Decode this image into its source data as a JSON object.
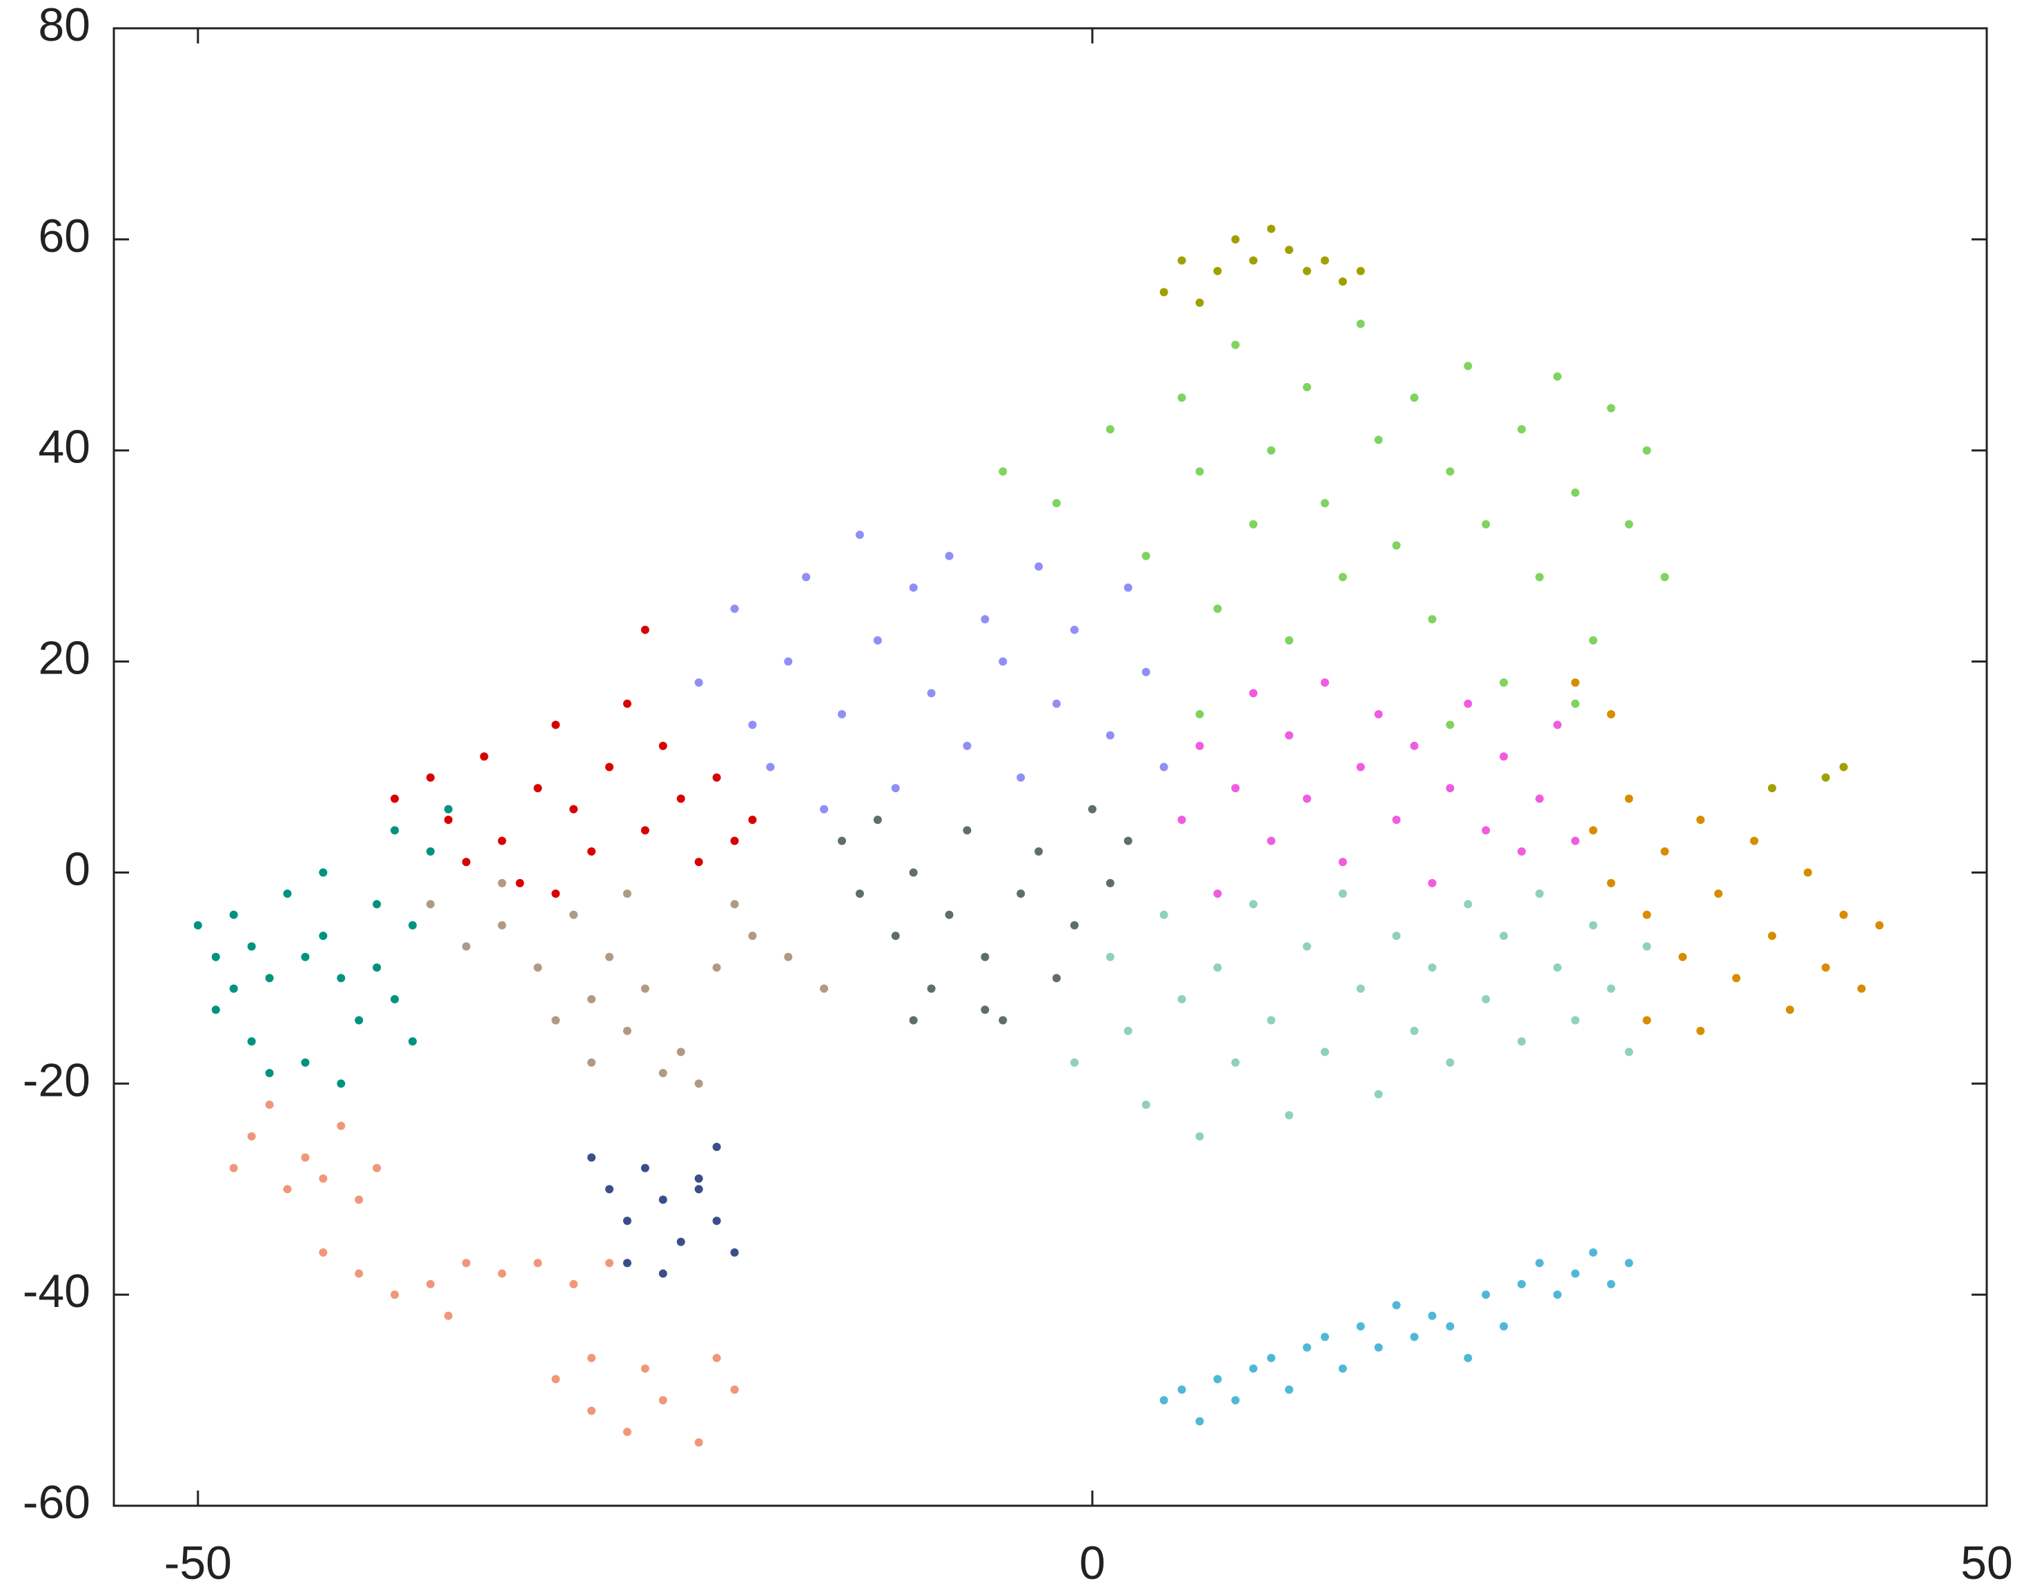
{
  "chart_data": {
    "type": "scatter",
    "xlim": [
      -54.7,
      50
    ],
    "ylim": [
      -60,
      80
    ],
    "xticks": [
      -50,
      0,
      50
    ],
    "yticks": [
      -60,
      -40,
      -20,
      0,
      20,
      40,
      60,
      80
    ],
    "series": [
      {
        "color": "#009380",
        "x": [
          -50,
          -49,
          -48,
          -47,
          -46,
          -49,
          -47,
          -45,
          -44,
          -43,
          -42,
          -41,
          -40,
          -39,
          -38,
          -40,
          -43,
          -44,
          -46,
          -42,
          -37,
          -36,
          -39,
          -38,
          -48
        ],
        "values": [
          -5,
          -8,
          -4,
          -7,
          -10,
          -13,
          -16,
          -2,
          -8,
          -6,
          -10,
          -14,
          -9,
          -12,
          -5,
          -3,
          0,
          -18,
          -19,
          -20,
          2,
          6,
          4,
          -16,
          -11
        ]
      },
      {
        "color": "#f0977a",
        "x": [
          -48,
          -47,
          -46,
          -45,
          -44,
          -43,
          -42,
          -41,
          -40,
          -43,
          -41,
          -39,
          -37,
          -36,
          -35,
          -33,
          -31,
          -29,
          -27,
          -30,
          -28,
          -26,
          -24,
          -22,
          -20,
          -21,
          -25,
          -28
        ],
        "values": [
          -28,
          -25,
          -22,
          -30,
          -27,
          -29,
          -24,
          -31,
          -28,
          -36,
          -38,
          -40,
          -39,
          -42,
          -37,
          -38,
          -37,
          -39,
          -37,
          -48,
          -51,
          -53,
          -50,
          -54,
          -49,
          -46,
          -47,
          -46
        ]
      },
      {
        "color": "#3a4f8a",
        "x": [
          -28,
          -27,
          -26,
          -25,
          -24,
          -23,
          -22,
          -21,
          -20,
          -26,
          -24,
          -21,
          -22
        ],
        "values": [
          -27,
          -30,
          -33,
          -28,
          -31,
          -35,
          -29,
          -33,
          -36,
          -37,
          -38,
          -26,
          -30
        ]
      },
      {
        "color": "#b09a84",
        "x": [
          -37,
          -35,
          -33,
          -31,
          -29,
          -28,
          -27,
          -26,
          -25,
          -24,
          -23,
          -22,
          -21,
          -20,
          -19,
          -17,
          -15,
          -30,
          -28,
          -33,
          -26
        ],
        "values": [
          -3,
          -7,
          -5,
          -9,
          -4,
          -12,
          -8,
          -15,
          -11,
          -19,
          -17,
          -20,
          -9,
          -3,
          -6,
          -8,
          -11,
          -14,
          -18,
          -1,
          -2
        ]
      },
      {
        "color": "#d90000",
        "x": [
          -39,
          -37,
          -36,
          -35,
          -34,
          -33,
          -32,
          -31,
          -30,
          -29,
          -28,
          -27,
          -26,
          -25,
          -24,
          -23,
          -22,
          -21,
          -20,
          -19,
          -25,
          -30
        ],
        "values": [
          7,
          9,
          5,
          1,
          11,
          3,
          -1,
          8,
          14,
          6,
          2,
          10,
          16,
          4,
          12,
          7,
          1,
          9,
          3,
          5,
          23,
          -2
        ]
      },
      {
        "color": "#8f8ff5",
        "x": [
          -22,
          -20,
          -18,
          -17,
          -16,
          -14,
          -13,
          -12,
          -11,
          -10,
          -9,
          -8,
          -7,
          -6,
          -5,
          -4,
          -3,
          -2,
          -1,
          1,
          2,
          3,
          4,
          -19,
          -15
        ],
        "values": [
          18,
          25,
          10,
          20,
          28,
          15,
          32,
          22,
          8,
          27,
          17,
          30,
          12,
          24,
          20,
          9,
          29,
          16,
          23,
          13,
          27,
          19,
          10,
          14,
          6
        ]
      },
      {
        "color": "#5f6e6b",
        "x": [
          -14,
          -13,
          -12,
          -11,
          -10,
          -9,
          -8,
          -7,
          -6,
          -5,
          -4,
          -3,
          -2,
          -1,
          0,
          1,
          2,
          -10,
          -6
        ],
        "values": [
          3,
          -2,
          5,
          -6,
          0,
          -11,
          -4,
          4,
          -8,
          -14,
          -2,
          2,
          -10,
          -5,
          6,
          -1,
          3,
          -14,
          -13
        ]
      },
      {
        "color": "#7ed45e",
        "x": [
          -5,
          -2,
          1,
          3,
          5,
          6,
          7,
          8,
          9,
          10,
          11,
          12,
          13,
          14,
          15,
          16,
          17,
          18,
          19,
          20,
          21,
          22,
          23,
          24,
          25,
          26,
          27,
          28,
          29,
          30,
          31,
          32,
          6,
          20,
          27
        ],
        "values": [
          38,
          35,
          42,
          30,
          45,
          38,
          25,
          50,
          33,
          40,
          22,
          46,
          35,
          28,
          52,
          41,
          31,
          45,
          24,
          38,
          48,
          33,
          18,
          42,
          28,
          47,
          36,
          22,
          44,
          33,
          40,
          28,
          15,
          14,
          16
        ]
      },
      {
        "color": "#a0a000",
        "x": [
          4,
          5,
          7,
          8,
          9,
          10,
          11,
          12,
          13,
          14,
          15,
          6,
          38,
          41,
          42
        ],
        "values": [
          55,
          58,
          57,
          60,
          58,
          61,
          59,
          57,
          58,
          56,
          57,
          54,
          8,
          9,
          10
        ]
      },
      {
        "color": "#f05ce0",
        "x": [
          5,
          6,
          7,
          8,
          9,
          10,
          11,
          12,
          13,
          14,
          15,
          16,
          17,
          18,
          19,
          20,
          21,
          22,
          23,
          24,
          25,
          26,
          27
        ],
        "values": [
          5,
          12,
          -2,
          8,
          17,
          3,
          13,
          7,
          18,
          1,
          10,
          15,
          5,
          12,
          -1,
          8,
          16,
          4,
          11,
          2,
          7,
          14,
          3
        ]
      },
      {
        "color": "#8fd0c0",
        "x": [
          -1,
          1,
          2,
          3,
          4,
          5,
          6,
          7,
          8,
          9,
          10,
          11,
          12,
          13,
          14,
          15,
          16,
          17,
          18,
          19,
          20,
          21,
          22,
          23,
          24,
          25,
          26,
          27,
          28,
          29,
          30,
          31
        ],
        "values": [
          -18,
          -8,
          -15,
          -22,
          -4,
          -12,
          -25,
          -9,
          -18,
          -3,
          -14,
          -23,
          -7,
          -17,
          -2,
          -11,
          -21,
          -6,
          -15,
          -9,
          -18,
          -3,
          -12,
          -6,
          -16,
          -2,
          -9,
          -14,
          -5,
          -11,
          -17,
          -7
        ]
      },
      {
        "color": "#d88c00",
        "x": [
          28,
          29,
          30,
          31,
          32,
          33,
          34,
          35,
          36,
          37,
          38,
          39,
          40,
          41,
          42,
          43,
          44,
          31,
          34,
          29,
          27
        ],
        "values": [
          4,
          -1,
          7,
          -4,
          2,
          -8,
          5,
          -2,
          -10,
          3,
          -6,
          -13,
          0,
          -9,
          -4,
          -11,
          -5,
          -14,
          -15,
          15,
          18
        ]
      },
      {
        "color": "#4fb8d8",
        "x": [
          4,
          5,
          6,
          7,
          8,
          9,
          10,
          11,
          12,
          13,
          14,
          15,
          16,
          17,
          18,
          19,
          20,
          21,
          22,
          23,
          24,
          25,
          26,
          27,
          28,
          29,
          30
        ],
        "values": [
          -50,
          -49,
          -52,
          -48,
          -50,
          -47,
          -46,
          -49,
          -45,
          -44,
          -47,
          -43,
          -45,
          -41,
          -44,
          -42,
          -43,
          -46,
          -40,
          -43,
          -39,
          -37,
          -40,
          -38,
          -36,
          -39,
          -37
        ]
      }
    ]
  }
}
